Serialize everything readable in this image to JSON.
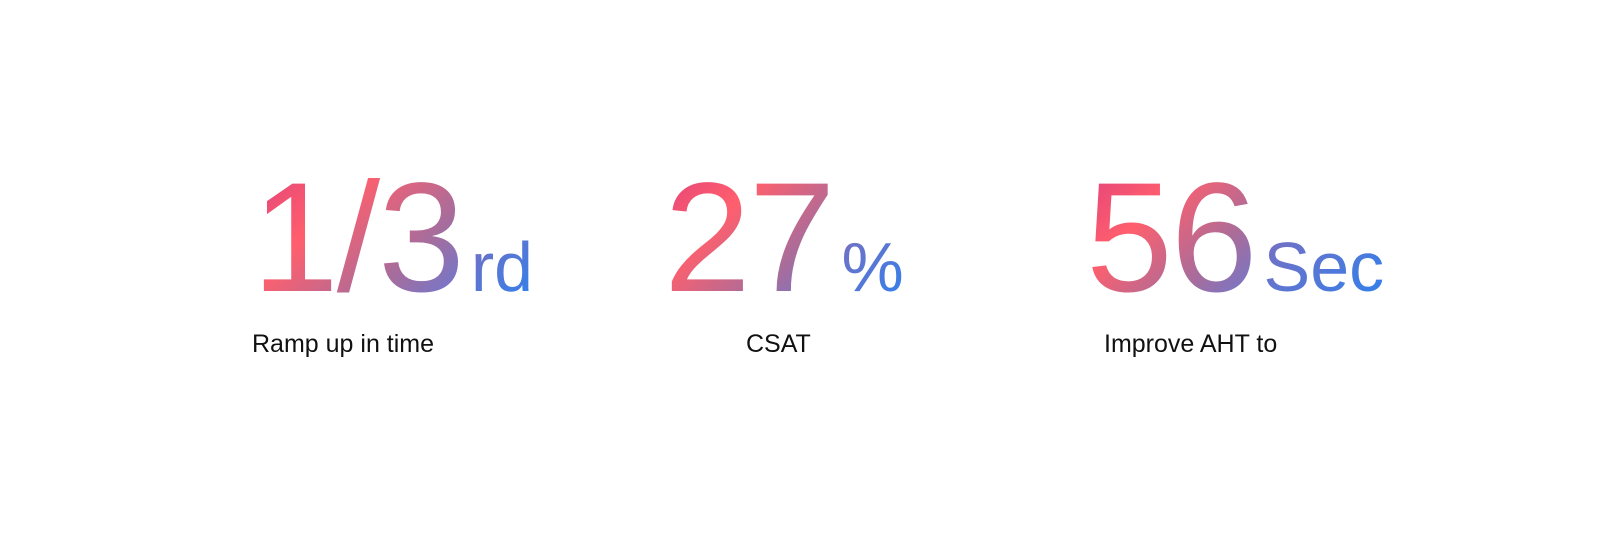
{
  "stats": [
    {
      "value": "1/3",
      "suffix": "rd",
      "label": "Ramp up in time"
    },
    {
      "value": "27",
      "suffix": "%",
      "label": "CSAT"
    },
    {
      "value": "56",
      "suffix": "Sec",
      "label": "Improve AHT to"
    }
  ],
  "colors": {
    "gradient_start": "#e0407a",
    "gradient_mid": "#ff5f6d",
    "gradient_end": "#2f80ed",
    "label": "#111111"
  }
}
